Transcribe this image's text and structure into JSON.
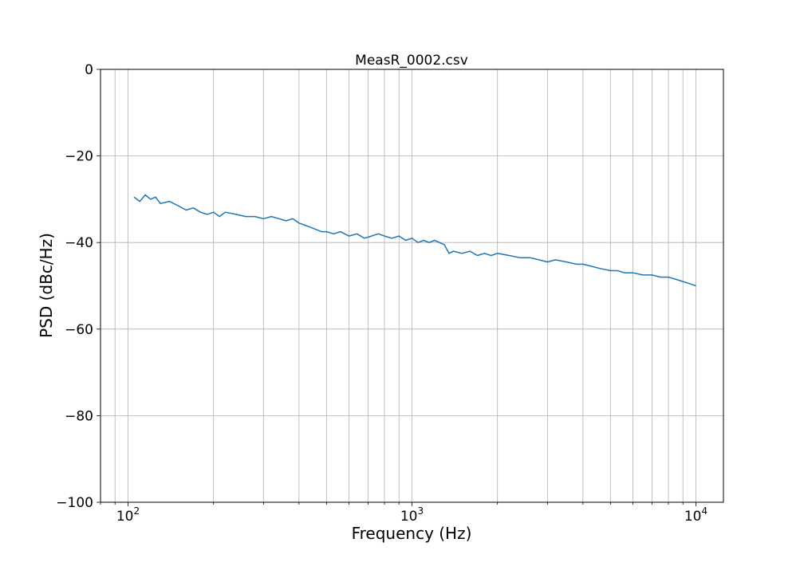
{
  "chart_data": {
    "type": "line",
    "title": "MeasR_0002.csv",
    "xlabel": "Frequency (Hz)",
    "ylabel": "PSD (dBc/Hz)",
    "x_scale": "log",
    "xlim": [
      80,
      12500
    ],
    "ylim": [
      -100,
      0
    ],
    "grid": true,
    "grid_color": "#b0b0b0",
    "line_color": "#1f77b4",
    "x_ticks": [
      {
        "base": "10",
        "exp": "2",
        "value": 100
      },
      {
        "base": "10",
        "exp": "3",
        "value": 1000
      },
      {
        "base": "10",
        "exp": "4",
        "value": 10000
      }
    ],
    "y_ticks": [
      {
        "value": 0,
        "label": "0"
      },
      {
        "value": -20,
        "label": "−20"
      },
      {
        "value": -40,
        "label": "−40"
      },
      {
        "value": -60,
        "label": "−60"
      },
      {
        "value": -80,
        "label": "−80"
      },
      {
        "value": -100,
        "label": "−100"
      }
    ],
    "series": [
      {
        "x": [
          105,
          110,
          115,
          120,
          125,
          130,
          140,
          150,
          160,
          170,
          180,
          190,
          200,
          210,
          220,
          240,
          260,
          280,
          300,
          320,
          340,
          360,
          380,
          400,
          420,
          440,
          460,
          480,
          500,
          530,
          560,
          600,
          640,
          680,
          720,
          760,
          800,
          850,
          900,
          950,
          1000,
          1050,
          1100,
          1150,
          1200,
          1250,
          1300,
          1350,
          1400,
          1500,
          1600,
          1700,
          1800,
          1900,
          2000,
          2200,
          2400,
          2600,
          2800,
          3000,
          3200,
          3500,
          3800,
          4000,
          4300,
          4600,
          5000,
          5300,
          5600,
          6000,
          6500,
          7000,
          7500,
          8000,
          8500,
          9000,
          9500,
          10000
        ],
        "y": [
          -29.5,
          -30.5,
          -29.0,
          -30.0,
          -29.5,
          -31.0,
          -30.5,
          -31.5,
          -32.5,
          -32.0,
          -33.0,
          -33.5,
          -33.0,
          -34.0,
          -33.0,
          -33.5,
          -34.0,
          -34.0,
          -34.5,
          -34.0,
          -34.5,
          -35.0,
          -34.5,
          -35.5,
          -36.0,
          -36.5,
          -37.0,
          -37.5,
          -37.5,
          -38.0,
          -37.5,
          -38.5,
          -38.0,
          -39.0,
          -38.5,
          -38.0,
          -38.5,
          -39.0,
          -38.5,
          -39.5,
          -39.0,
          -40.0,
          -39.5,
          -40.0,
          -39.5,
          -40.0,
          -40.5,
          -42.5,
          -42.0,
          -42.5,
          -42.0,
          -43.0,
          -42.5,
          -43.0,
          -42.5,
          -43.0,
          -43.5,
          -43.5,
          -44.0,
          -44.5,
          -44.0,
          -44.5,
          -45.0,
          -45.0,
          -45.5,
          -46.0,
          -46.5,
          -46.5,
          -47.0,
          -47.0,
          -47.5,
          -47.5,
          -48.0,
          -48.0,
          -48.5,
          -49.0,
          -49.5,
          -50.0
        ]
      }
    ]
  }
}
